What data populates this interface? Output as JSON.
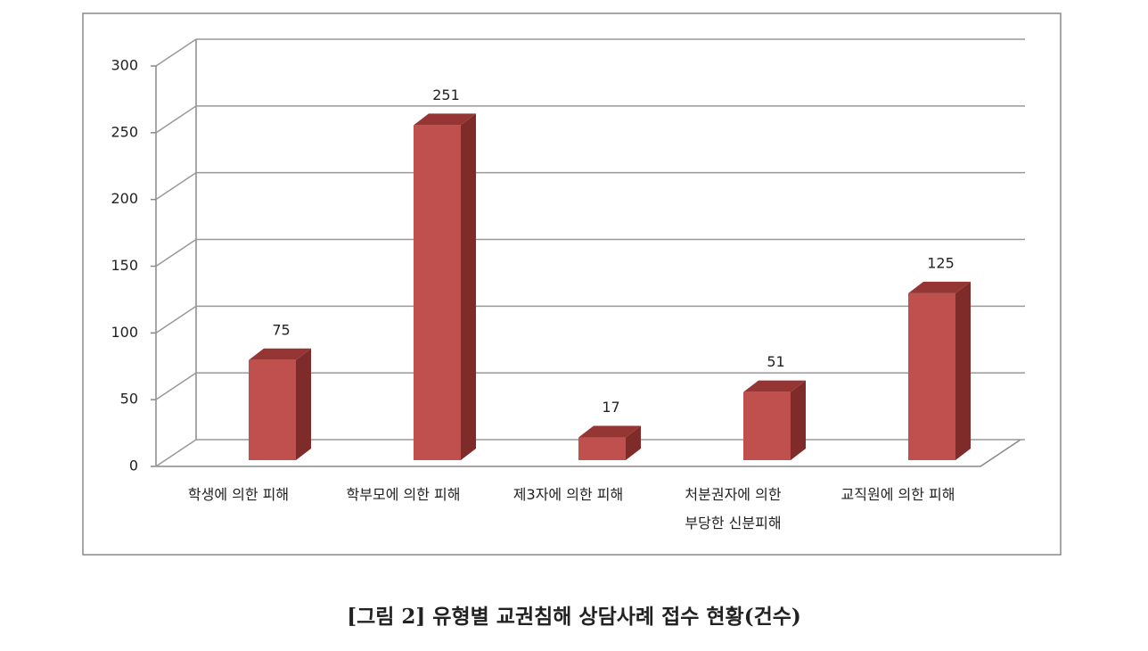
{
  "chart_data": {
    "type": "bar3d",
    "categories": [
      "학생에 의한 피해",
      "학부모에 의한 피해",
      "제3자에 의한 피해",
      "처분권자에 의한\n부당한 신분피해",
      "교직원에 의한 피해"
    ],
    "values": [
      75,
      251,
      17,
      51,
      125
    ],
    "color": "#c0504d",
    "ylim": [
      0,
      300
    ],
    "yticks": [
      0,
      50,
      100,
      150,
      200,
      250,
      300
    ],
    "grid": true,
    "caption": "[그림 2] 유형별 교권침해 상담사례 접수 현황(건수)"
  }
}
